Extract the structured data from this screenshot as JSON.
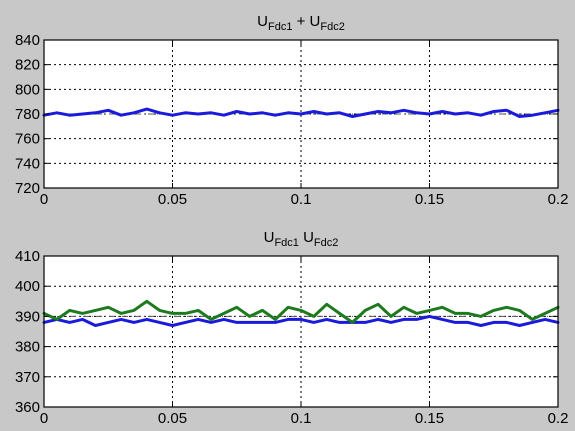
{
  "chart_data": [
    {
      "type": "line",
      "title_parts": [
        {
          "text": "U",
          "sub": "Fdc1"
        },
        {
          "text": " + U",
          "sub": "Fdc2"
        }
      ],
      "xlim": [
        0,
        0.2
      ],
      "ylim": [
        720,
        840
      ],
      "xticks": [
        "0",
        "0.05",
        "0.1",
        "0.15",
        "0.2"
      ],
      "yticks": [
        "720",
        "740",
        "760",
        "780",
        "800",
        "820",
        "840"
      ],
      "grid": true,
      "reference_line": 780,
      "series": [
        {
          "color": "#1a1adc",
          "x": [
            0,
            0.005,
            0.01,
            0.015,
            0.02,
            0.025,
            0.03,
            0.035,
            0.04,
            0.045,
            0.05,
            0.055,
            0.06,
            0.065,
            0.07,
            0.075,
            0.08,
            0.085,
            0.09,
            0.095,
            0.1,
            0.105,
            0.11,
            0.115,
            0.12,
            0.125,
            0.13,
            0.135,
            0.14,
            0.145,
            0.15,
            0.155,
            0.16,
            0.165,
            0.17,
            0.175,
            0.18,
            0.185,
            0.19,
            0.195,
            0.2
          ],
          "y": [
            779,
            781,
            779,
            780,
            781,
            783,
            779,
            781,
            784,
            781,
            779,
            781,
            780,
            781,
            779,
            782,
            780,
            781,
            779,
            781,
            780,
            782,
            780,
            781,
            778,
            780,
            782,
            781,
            783,
            781,
            780,
            782,
            780,
            781,
            779,
            782,
            783,
            778,
            779,
            781,
            783
          ]
        }
      ]
    },
    {
      "type": "line",
      "title_parts": [
        {
          "text": "U",
          "sub": "Fdc1"
        },
        {
          "text": " U",
          "sub": "Fdc2"
        }
      ],
      "xlim": [
        0,
        0.2
      ],
      "ylim": [
        360,
        410
      ],
      "xticks": [
        "0",
        "0.05",
        "0.1",
        "0.15",
        "0.2"
      ],
      "yticks": [
        "360",
        "370",
        "380",
        "390",
        "400",
        "410"
      ],
      "grid": true,
      "reference_line": 390,
      "series": [
        {
          "color": "#1a1adc",
          "x": [
            0,
            0.005,
            0.01,
            0.015,
            0.02,
            0.025,
            0.03,
            0.035,
            0.04,
            0.045,
            0.05,
            0.055,
            0.06,
            0.065,
            0.07,
            0.075,
            0.08,
            0.085,
            0.09,
            0.095,
            0.1,
            0.105,
            0.11,
            0.115,
            0.12,
            0.125,
            0.13,
            0.135,
            0.14,
            0.145,
            0.15,
            0.155,
            0.16,
            0.165,
            0.17,
            0.175,
            0.18,
            0.185,
            0.19,
            0.195,
            0.2
          ],
          "y": [
            388,
            389,
            388,
            389,
            387,
            388,
            389,
            388,
            389,
            388,
            387,
            388,
            389,
            388,
            389,
            388,
            388,
            388,
            388,
            389,
            389,
            388,
            389,
            388,
            388,
            388,
            389,
            388,
            389,
            389,
            390,
            389,
            388,
            388,
            387,
            388,
            388,
            387,
            388,
            389,
            388
          ]
        },
        {
          "color": "#1e7a1e",
          "x": [
            0,
            0.005,
            0.01,
            0.015,
            0.02,
            0.025,
            0.03,
            0.035,
            0.04,
            0.045,
            0.05,
            0.055,
            0.06,
            0.065,
            0.07,
            0.075,
            0.08,
            0.085,
            0.09,
            0.095,
            0.1,
            0.105,
            0.11,
            0.115,
            0.12,
            0.125,
            0.13,
            0.135,
            0.14,
            0.145,
            0.15,
            0.155,
            0.16,
            0.165,
            0.17,
            0.175,
            0.18,
            0.185,
            0.19,
            0.195,
            0.2
          ],
          "y": [
            391,
            389,
            392,
            391,
            392,
            393,
            391,
            392,
            395,
            392,
            391,
            391,
            392,
            389,
            391,
            393,
            390,
            392,
            389,
            393,
            392,
            390,
            394,
            391,
            388,
            392,
            394,
            390,
            393,
            391,
            392,
            393,
            391,
            391,
            390,
            392,
            393,
            392,
            389,
            391,
            393
          ]
        }
      ]
    }
  ]
}
